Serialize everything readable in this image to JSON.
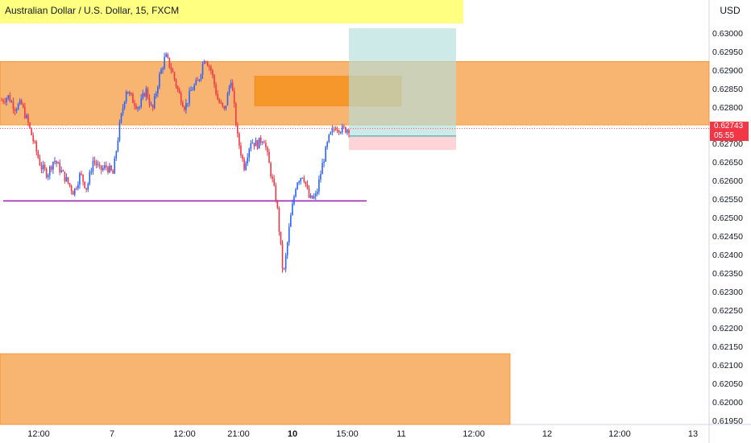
{
  "header": {
    "title": "Australian Dollar / U.S. Dollar, 15, FXCM"
  },
  "price_axis": {
    "currency": "USD",
    "last_price": "0.62743",
    "countdown": "05:55"
  },
  "colors": {
    "up": "#2962ff",
    "down": "#f23645",
    "zone": "#f7a858",
    "zone_border": "#f57c00",
    "support_line": "#9c27b0",
    "target_fill": "#b2dfdb",
    "stop_fill": "#ffcdd2",
    "title_bg": "#ffff80"
  },
  "chart_data": {
    "type": "candlestick",
    "title": "Australian Dollar / U.S. Dollar, 15, FXCM",
    "symbol": "AUD/USD",
    "interval": "15",
    "ylim": [
      0.6193,
      0.6307
    ],
    "y_ticks": [
      "0.63000",
      "0.62950",
      "0.62900",
      "0.62850",
      "0.62800",
      "0.62700",
      "0.62650",
      "0.62600",
      "0.62550",
      "0.62500",
      "0.62450",
      "0.62400",
      "0.62350",
      "0.62300",
      "0.62250",
      "0.62200",
      "0.62150",
      "0.62100",
      "0.62050",
      "0.62000",
      "0.61950"
    ],
    "x_ticks": [
      {
        "label": "12:00",
        "bold": false
      },
      {
        "label": "7",
        "bold": false
      },
      {
        "label": "12:00",
        "bold": false
      },
      {
        "label": "21:00",
        "bold": false
      },
      {
        "label": "10",
        "bold": true
      },
      {
        "label": "15:00",
        "bold": false
      },
      {
        "label": "11",
        "bold": false
      },
      {
        "label": "12:00",
        "bold": false
      },
      {
        "label": "12",
        "bold": false
      },
      {
        "label": "12:00",
        "bold": false
      },
      {
        "label": "13",
        "bold": false
      }
    ],
    "last_price": 0.62743,
    "zones": [
      {
        "name": "supply-zone",
        "top": 0.62925,
        "bottom": 0.62753
      },
      {
        "name": "order-block",
        "top": 0.62885,
        "bottom": 0.62805
      },
      {
        "name": "demand-zone-lower",
        "top": 0.62133,
        "bottom": 0.6194
      }
    ],
    "support_level": 0.62547,
    "position": {
      "type": "long",
      "entry": 0.62723,
      "target": 0.63015,
      "stop": 0.62685
    },
    "price_path": [
      [
        0,
        0.6282
      ],
      [
        1,
        0.6283
      ],
      [
        2,
        0.628
      ],
      [
        3,
        0.6281
      ],
      [
        4,
        0.6276
      ],
      [
        5,
        0.627
      ],
      [
        6,
        0.6264
      ],
      [
        7,
        0.6262
      ],
      [
        8,
        0.6266
      ],
      [
        9,
        0.6263
      ],
      [
        10,
        0.626
      ],
      [
        11,
        0.6257
      ],
      [
        12,
        0.6262
      ],
      [
        13,
        0.6258
      ],
      [
        14,
        0.6266
      ],
      [
        15,
        0.6263
      ],
      [
        16,
        0.6264
      ],
      [
        17,
        0.6262
      ],
      [
        18,
        0.6275
      ],
      [
        19,
        0.6285
      ],
      [
        20,
        0.6282
      ],
      [
        21,
        0.628
      ],
      [
        22,
        0.6285
      ],
      [
        23,
        0.6279
      ],
      [
        24,
        0.6288
      ],
      [
        25,
        0.6294
      ],
      [
        26,
        0.629
      ],
      [
        27,
        0.6284
      ],
      [
        28,
        0.628
      ],
      [
        29,
        0.6285
      ],
      [
        30,
        0.6287
      ],
      [
        31,
        0.6294
      ],
      [
        32,
        0.629
      ],
      [
        33,
        0.6282
      ],
      [
        34,
        0.6279
      ],
      [
        35,
        0.6288
      ],
      [
        36,
        0.6272
      ],
      [
        37,
        0.6264
      ],
      [
        38,
        0.6271
      ],
      [
        39,
        0.627
      ],
      [
        40,
        0.6272
      ],
      [
        41,
        0.6263
      ],
      [
        42,
        0.6254
      ],
      [
        43,
        0.6234
      ],
      [
        44,
        0.6249
      ],
      [
        45,
        0.626
      ],
      [
        46,
        0.6262
      ],
      [
        47,
        0.6255
      ],
      [
        48,
        0.6256
      ],
      [
        49,
        0.6265
      ],
      [
        50,
        0.6272
      ],
      [
        51,
        0.6275
      ],
      [
        52,
        0.6274
      ],
      [
        53,
        0.62743
      ]
    ]
  }
}
